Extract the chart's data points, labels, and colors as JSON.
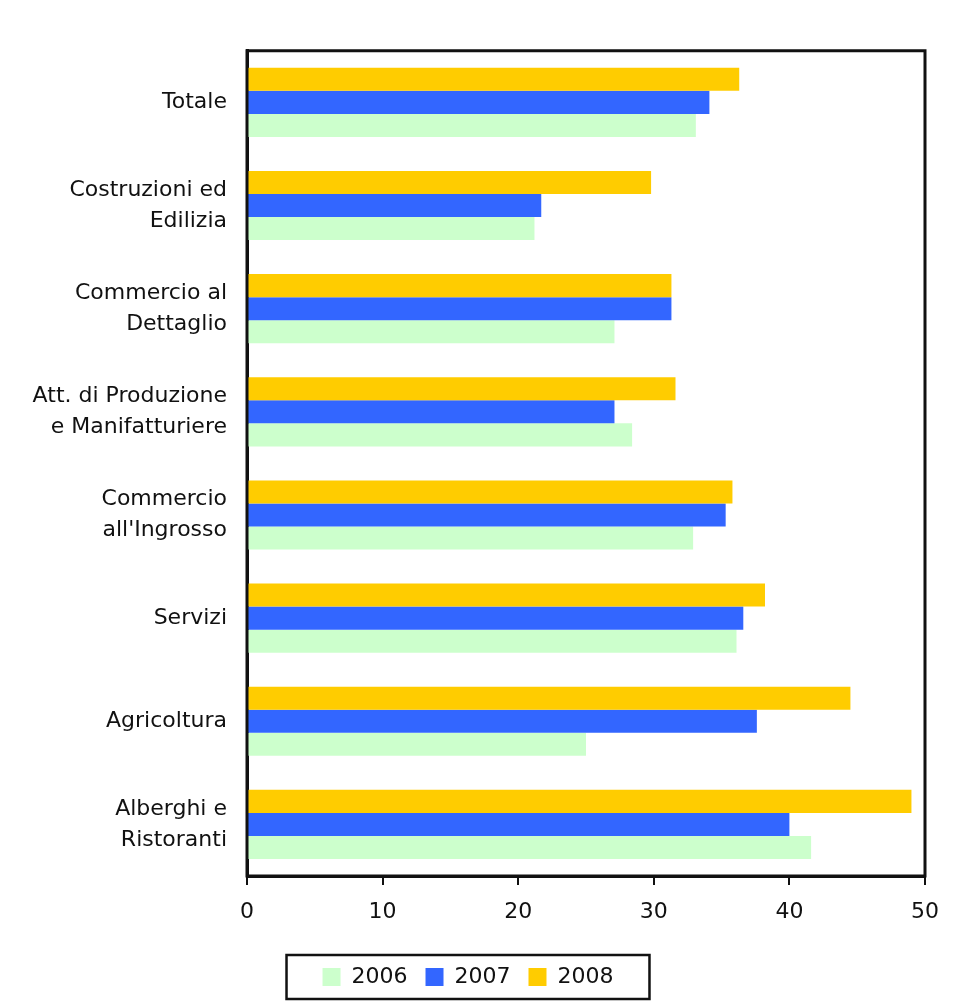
{
  "chart_data": {
    "type": "bar",
    "orientation": "horizontal",
    "categories": [
      "Totale",
      "Costruzioni ed Edilizia",
      "Commercio al Dettaglio",
      "Att. di Produzione e Manifatturiere",
      "Commercio all'Ingrosso",
      "Servizi",
      "Agricoltura",
      "Alberghi e Ristoranti"
    ],
    "series": [
      {
        "name": "2006",
        "color": "#ccffcc",
        "values": [
          33.1,
          21.2,
          27.1,
          28.4,
          32.9,
          36.1,
          25.0,
          41.6
        ]
      },
      {
        "name": "2007",
        "color": "#3366ff",
        "values": [
          34.1,
          21.7,
          31.3,
          27.1,
          35.3,
          36.6,
          37.6,
          40.0
        ]
      },
      {
        "name": "2008",
        "color": "#ffcc00",
        "values": [
          36.3,
          29.8,
          31.3,
          31.6,
          35.8,
          38.2,
          44.5,
          49.0
        ]
      }
    ],
    "xlim": [
      0,
      50
    ],
    "xticks": [
      0,
      10,
      20,
      30,
      40,
      50
    ],
    "grid": false,
    "legend": "bottom"
  }
}
